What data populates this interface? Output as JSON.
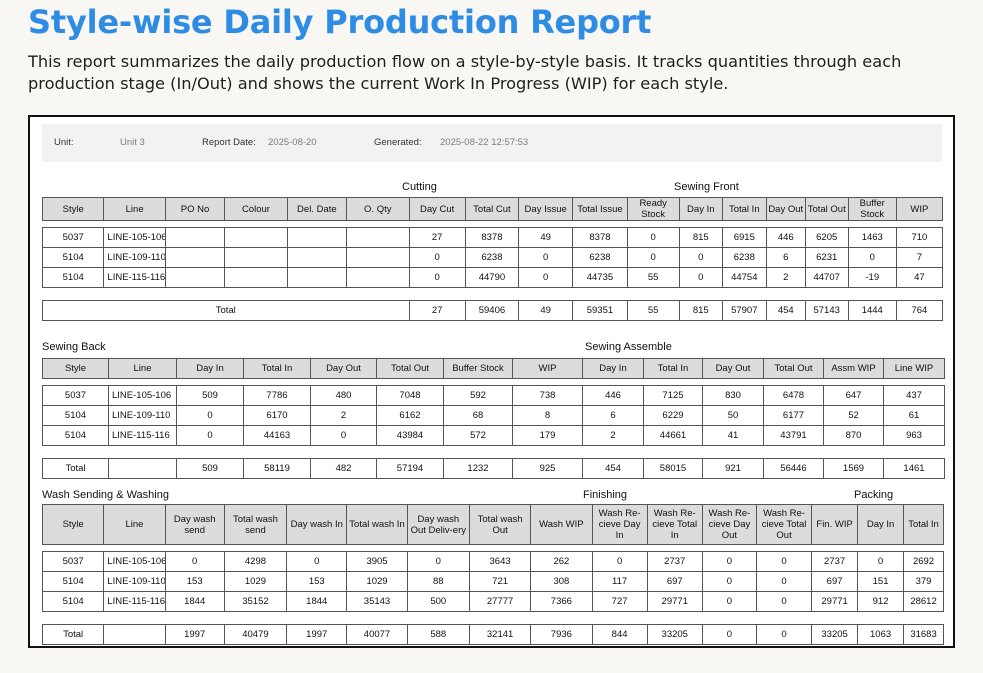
{
  "page": {
    "title": "Style-wise Daily Production Report",
    "description": "This report summarizes the daily production flow on a style-by-style basis. It tracks quantities through each production stage (In/Out) and shows the current Work In Progress (WIP) for each style."
  },
  "meta": {
    "unit_label": "Unit:",
    "unit_value": "Unit 3",
    "date_label": "Report Date:",
    "date_value": "2025-08-20",
    "gen_label": "Generated:",
    "gen_value": "2025-08-22 12:57:53"
  },
  "table1": {
    "cutting_title": "Cutting",
    "sewing_front_title": "Sewing Front",
    "headers": [
      "Style",
      "Line",
      "PO No",
      "Colour",
      "Del. Date",
      "O. Qty",
      "Day Cut",
      "Total Cut",
      "Day Issue",
      "Total Issue",
      "Ready Stock",
      "Day In",
      "Total In",
      "Day Out",
      "Total Out",
      "Buffer Stock",
      "WIP"
    ],
    "rows": [
      [
        "5037",
        "LINE-105-106",
        "",
        "",
        "",
        "",
        "27",
        "8378",
        "49",
        "8378",
        "0",
        "815",
        "6915",
        "446",
        "6205",
        "1463",
        "710"
      ],
      [
        "5104",
        "LINE-109-110",
        "",
        "",
        "",
        "",
        "0",
        "6238",
        "0",
        "6238",
        "0",
        "0",
        "6238",
        "6",
        "6231",
        "0",
        "7"
      ],
      [
        "5104",
        "LINE-115-116",
        "",
        "",
        "",
        "",
        "0",
        "44790",
        "0",
        "44735",
        "55",
        "0",
        "44754",
        "2",
        "44707",
        "-19",
        "47"
      ]
    ],
    "total": [
      "Total",
      "27",
      "59406",
      "49",
      "59351",
      "55",
      "815",
      "57907",
      "454",
      "57143",
      "1444",
      "764"
    ]
  },
  "table2": {
    "sewing_back_title": "Sewing Back",
    "sewing_assemble_title": "Sewing Assemble",
    "headers": [
      "Style",
      "Line",
      "Day In",
      "Total In",
      "Day Out",
      "Total Out",
      "Buffer Stock",
      "WIP",
      "Day In",
      "Total In",
      "Day Out",
      "Total Out",
      "Assm WIP",
      "Line WIP"
    ],
    "rows": [
      [
        "5037",
        "LINE-105-106",
        "509",
        "7786",
        "480",
        "7048",
        "592",
        "738",
        "446",
        "7125",
        "830",
        "6478",
        "647",
        "437"
      ],
      [
        "5104",
        "LINE-109-110",
        "0",
        "6170",
        "2",
        "6162",
        "68",
        "8",
        "6",
        "6229",
        "50",
        "6177",
        "52",
        "61"
      ],
      [
        "5104",
        "LINE-115-116",
        "0",
        "44163",
        "0",
        "43984",
        "572",
        "179",
        "2",
        "44661",
        "41",
        "43791",
        "870",
        "963"
      ]
    ],
    "total": [
      "Total",
      "",
      "509",
      "58119",
      "482",
      "57194",
      "1232",
      "925",
      "454",
      "58015",
      "921",
      "56446",
      "1569",
      "1461"
    ]
  },
  "table3": {
    "wash_title": "Wash Sending & Washing",
    "finishing_title": "Finishing",
    "packing_title": "Packing",
    "headers": [
      "Style",
      "Line",
      "Day wash send",
      "Total wash send",
      "Day wash In",
      "Total wash In",
      "Day wash Out Deliv-ery",
      "Total wash Out",
      "Wash WIP",
      "Wash Re-cieve Day In",
      "Wash Re-cieve Total In",
      "Wash Re-cieve Day Out",
      "Wash Re-cieve Total Out",
      "Fin. WIP",
      "Day In",
      "Total In"
    ],
    "rows": [
      [
        "5037",
        "LINE-105-106",
        "0",
        "4298",
        "0",
        "3905",
        "0",
        "3643",
        "262",
        "0",
        "2737",
        "0",
        "0",
        "2737",
        "0",
        "2692"
      ],
      [
        "5104",
        "LINE-109-110",
        "153",
        "1029",
        "153",
        "1029",
        "88",
        "721",
        "308",
        "117",
        "697",
        "0",
        "0",
        "697",
        "151",
        "379"
      ],
      [
        "5104",
        "LINE-115-116",
        "1844",
        "35152",
        "1844",
        "35143",
        "500",
        "27777",
        "7366",
        "727",
        "29771",
        "0",
        "0",
        "29771",
        "912",
        "28612"
      ]
    ],
    "total": [
      "Total",
      "",
      "1997",
      "40479",
      "1997",
      "40077",
      "588",
      "32141",
      "7936",
      "844",
      "33205",
      "0",
      "0",
      "33205",
      "1063",
      "31683"
    ]
  }
}
